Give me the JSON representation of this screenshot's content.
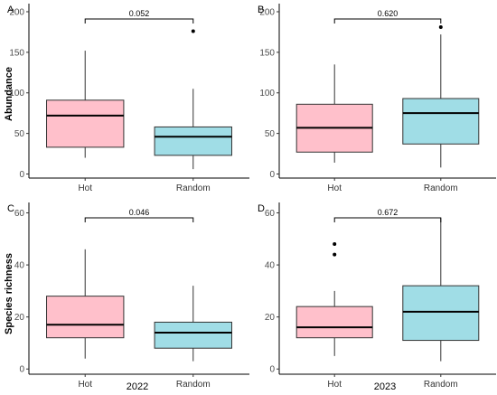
{
  "figure": {
    "row_labels": [
      "Abundance",
      "Species richness"
    ],
    "column_labels": [
      "2022",
      "2023"
    ]
  },
  "colors": {
    "Hot": "#ffc0cb",
    "Random": "#a0dde6",
    "stroke": "#333333"
  },
  "chart_data": [
    {
      "type": "boxplot",
      "panel": "A",
      "categories": [
        "Hot",
        "Random"
      ],
      "ylim": [
        -5,
        210
      ],
      "yticks": [
        0,
        50,
        100,
        150,
        200
      ],
      "ylabel": "Abundance",
      "xlabel": "",
      "pvalue": "0.052",
      "boxes": [
        {
          "name": "Hot",
          "whisker_low": 20,
          "q1": 33,
          "median": 72,
          "q3": 91,
          "whisker_high": 152,
          "outliers": []
        },
        {
          "name": "Random",
          "whisker_low": 6,
          "q1": 23,
          "median": 46,
          "q3": 58,
          "whisker_high": 105,
          "outliers": [
            176
          ]
        }
      ]
    },
    {
      "type": "boxplot",
      "panel": "B",
      "categories": [
        "Hot",
        "Random"
      ],
      "ylim": [
        -5,
        210
      ],
      "yticks": [
        0,
        50,
        100,
        150,
        200
      ],
      "ylabel": "",
      "xlabel": "",
      "pvalue": "0.620",
      "boxes": [
        {
          "name": "Hot",
          "whisker_low": 14,
          "q1": 27,
          "median": 57,
          "q3": 86,
          "whisker_high": 135,
          "outliers": []
        },
        {
          "name": "Random",
          "whisker_low": 8,
          "q1": 37,
          "median": 75,
          "q3": 93,
          "whisker_high": 172,
          "outliers": [
            181
          ]
        }
      ]
    },
    {
      "type": "boxplot",
      "panel": "C",
      "categories": [
        "Hot",
        "Random"
      ],
      "ylim": [
        -2,
        64
      ],
      "yticks": [
        0,
        20,
        40,
        60
      ],
      "ylabel": "Species richness",
      "xlabel": "2022",
      "pvalue": "0.046",
      "boxes": [
        {
          "name": "Hot",
          "whisker_low": 4,
          "q1": 12,
          "median": 17,
          "q3": 28,
          "whisker_high": 46,
          "outliers": []
        },
        {
          "name": "Random",
          "whisker_low": 3,
          "q1": 8,
          "median": 14,
          "q3": 18,
          "whisker_high": 32,
          "outliers": []
        }
      ]
    },
    {
      "type": "boxplot",
      "panel": "D",
      "categories": [
        "Hot",
        "Random"
      ],
      "ylim": [
        -2,
        64
      ],
      "yticks": [
        0,
        20,
        40,
        60
      ],
      "ylabel": "",
      "xlabel": "2023",
      "pvalue": "0.672",
      "boxes": [
        {
          "name": "Hot",
          "whisker_low": 5,
          "q1": 12,
          "median": 16,
          "q3": 24,
          "whisker_high": 30,
          "outliers": [
            44,
            48
          ]
        },
        {
          "name": "Random",
          "whisker_low": 3,
          "q1": 11,
          "median": 22,
          "q3": 32,
          "whisker_high": 58,
          "outliers": []
        }
      ]
    }
  ]
}
